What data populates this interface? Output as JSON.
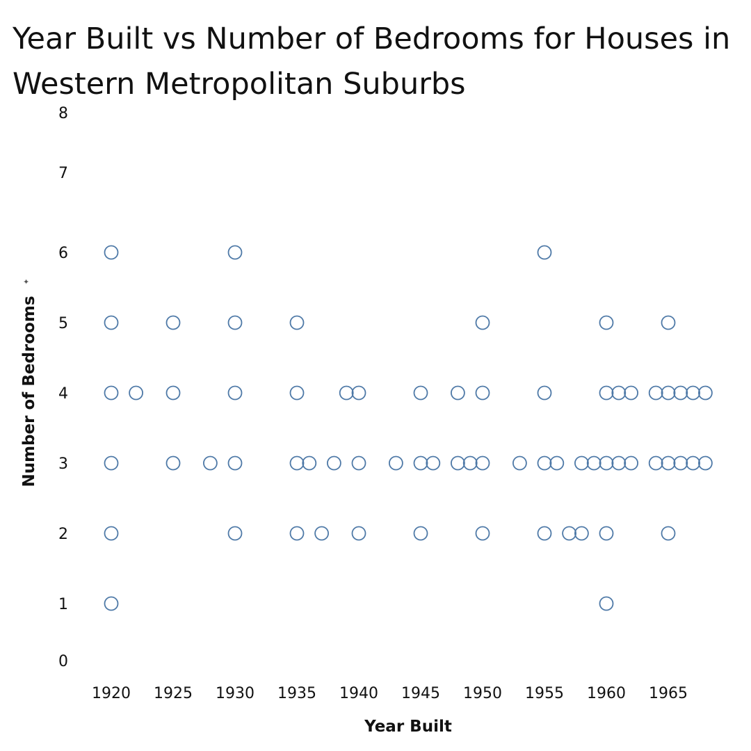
{
  "chart_data": {
    "type": "scatter",
    "title": "Year Built vs Number of Bedrooms for Houses in Western Metropolitan Suburbs",
    "xlabel": "Year Built",
    "ylabel": "Number of Bedrooms",
    "ylabel_marker": "✦",
    "xlim": [
      1918,
      1969
    ],
    "ylim": [
      0,
      8
    ],
    "x_ticks": [
      1920,
      1925,
      1930,
      1935,
      1940,
      1945,
      1950,
      1955,
      1960,
      1965
    ],
    "y_ticks": [
      0,
      1,
      2,
      3,
      4,
      5,
      6,
      7,
      8
    ],
    "grid": false,
    "marker": "open-circle",
    "marker_color": "#4e79a7",
    "points": [
      {
        "x": 1920,
        "y": 6
      },
      {
        "x": 1920,
        "y": 5
      },
      {
        "x": 1920,
        "y": 4
      },
      {
        "x": 1920,
        "y": 3
      },
      {
        "x": 1920,
        "y": 2
      },
      {
        "x": 1920,
        "y": 1
      },
      {
        "x": 1922,
        "y": 4
      },
      {
        "x": 1925,
        "y": 5
      },
      {
        "x": 1925,
        "y": 4
      },
      {
        "x": 1925,
        "y": 3
      },
      {
        "x": 1928,
        "y": 3
      },
      {
        "x": 1930,
        "y": 6
      },
      {
        "x": 1930,
        "y": 5
      },
      {
        "x": 1930,
        "y": 4
      },
      {
        "x": 1930,
        "y": 3
      },
      {
        "x": 1930,
        "y": 2
      },
      {
        "x": 1935,
        "y": 5
      },
      {
        "x": 1935,
        "y": 4
      },
      {
        "x": 1935,
        "y": 3
      },
      {
        "x": 1935,
        "y": 2
      },
      {
        "x": 1936,
        "y": 3
      },
      {
        "x": 1937,
        "y": 2
      },
      {
        "x": 1938,
        "y": 3
      },
      {
        "x": 1939,
        "y": 4
      },
      {
        "x": 1940,
        "y": 4
      },
      {
        "x": 1940,
        "y": 3
      },
      {
        "x": 1940,
        "y": 2
      },
      {
        "x": 1943,
        "y": 3
      },
      {
        "x": 1945,
        "y": 4
      },
      {
        "x": 1945,
        "y": 3
      },
      {
        "x": 1945,
        "y": 2
      },
      {
        "x": 1946,
        "y": 3
      },
      {
        "x": 1948,
        "y": 4
      },
      {
        "x": 1948,
        "y": 3
      },
      {
        "x": 1949,
        "y": 3
      },
      {
        "x": 1950,
        "y": 5
      },
      {
        "x": 1950,
        "y": 4
      },
      {
        "x": 1950,
        "y": 3
      },
      {
        "x": 1950,
        "y": 2
      },
      {
        "x": 1953,
        "y": 3
      },
      {
        "x": 1955,
        "y": 6
      },
      {
        "x": 1955,
        "y": 4
      },
      {
        "x": 1955,
        "y": 3
      },
      {
        "x": 1955,
        "y": 2
      },
      {
        "x": 1956,
        "y": 3
      },
      {
        "x": 1957,
        "y": 2
      },
      {
        "x": 1958,
        "y": 3
      },
      {
        "x": 1958,
        "y": 2
      },
      {
        "x": 1959,
        "y": 3
      },
      {
        "x": 1960,
        "y": 5
      },
      {
        "x": 1960,
        "y": 4
      },
      {
        "x": 1960,
        "y": 3
      },
      {
        "x": 1960,
        "y": 2
      },
      {
        "x": 1960,
        "y": 1
      },
      {
        "x": 1961,
        "y": 4
      },
      {
        "x": 1961,
        "y": 3
      },
      {
        "x": 1962,
        "y": 4
      },
      {
        "x": 1962,
        "y": 3
      },
      {
        "x": 1964,
        "y": 4
      },
      {
        "x": 1964,
        "y": 3
      },
      {
        "x": 1965,
        "y": 5
      },
      {
        "x": 1965,
        "y": 4
      },
      {
        "x": 1965,
        "y": 3
      },
      {
        "x": 1965,
        "y": 2
      },
      {
        "x": 1966,
        "y": 4
      },
      {
        "x": 1966,
        "y": 3
      },
      {
        "x": 1967,
        "y": 4
      },
      {
        "x": 1967,
        "y": 3
      },
      {
        "x": 1968,
        "y": 4
      },
      {
        "x": 1968,
        "y": 3
      }
    ]
  }
}
